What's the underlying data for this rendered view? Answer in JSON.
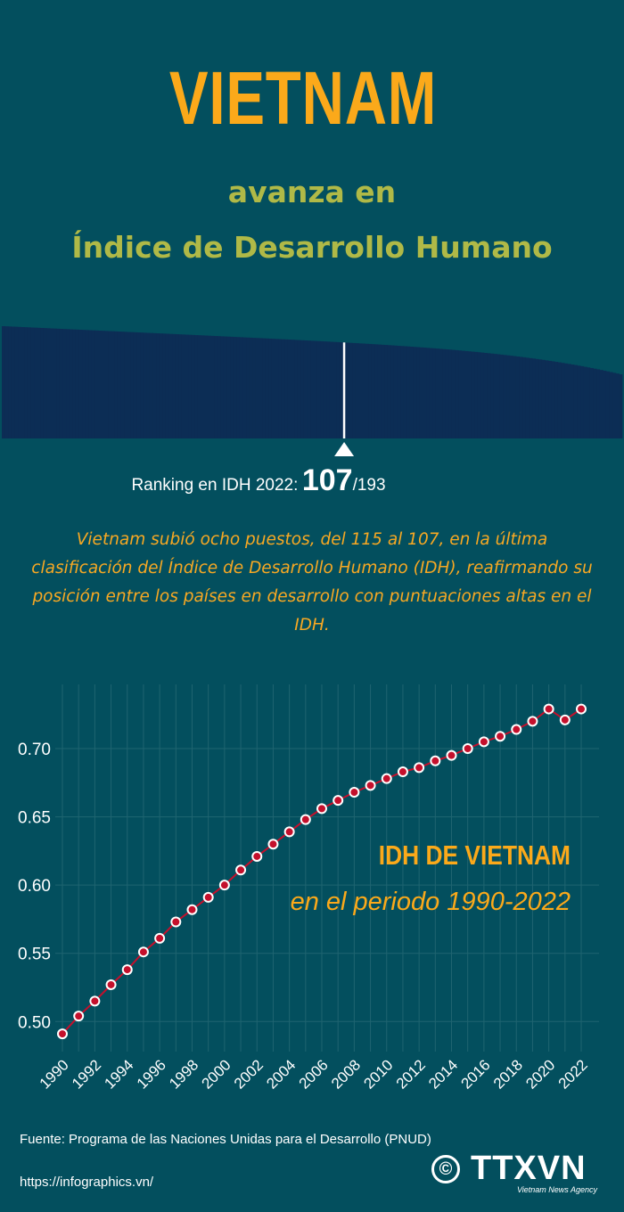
{
  "header": {
    "title": "VIETNAM",
    "subtitle_line1": "avanza en",
    "subtitle_line2": "Índice de Desarrollo Humano"
  },
  "ranking": {
    "label": "Ranking en IDH 2022:",
    "position": "107",
    "total": "/193",
    "rank_value": 107,
    "rank_total": 193,
    "bar_color": "#0c2d55",
    "marker_color": "#ffffff"
  },
  "description": "Vietnam subió ocho puestos, del 115 al 107, en la última clasificación del Índice de Desarrollo Humano (IDH), reafirmando su posición entre los países en desarrollo con puntuaciones altas en el IDH.",
  "chart_title": {
    "line1": "IDH DE VIETNAM",
    "line2": "en el periodo 1990-2022"
  },
  "chart_data": {
    "type": "line",
    "x": [
      "1990",
      "1991",
      "1992",
      "1993",
      "1994",
      "1995",
      "1996",
      "1997",
      "1998",
      "1999",
      "2000",
      "2001",
      "2002",
      "2003",
      "2004",
      "2005",
      "2006",
      "2007",
      "2008",
      "2009",
      "2010",
      "2011",
      "2012",
      "2013",
      "2014",
      "2015",
      "2016",
      "2017",
      "2018",
      "2019",
      "2020",
      "2021",
      "2022"
    ],
    "x_tick_labels": [
      "1990",
      "1992",
      "1994",
      "1996",
      "1998",
      "2000",
      "2002",
      "2004",
      "2006",
      "2008",
      "2010",
      "2012",
      "2014",
      "2016",
      "2018",
      "2020",
      "2022"
    ],
    "values": [
      0.491,
      0.504,
      0.515,
      0.527,
      0.538,
      0.551,
      0.561,
      0.573,
      0.582,
      0.591,
      0.6,
      0.611,
      0.621,
      0.63,
      0.639,
      0.648,
      0.656,
      0.662,
      0.668,
      0.673,
      0.678,
      0.683,
      0.686,
      0.691,
      0.695,
      0.7,
      0.705,
      0.709,
      0.714,
      0.72,
      0.729,
      0.721,
      0.729
    ],
    "y_ticks": [
      "0.50",
      "0.55",
      "0.60",
      "0.65",
      "0.70"
    ],
    "ylim": [
      0.478,
      0.747
    ],
    "grid": true,
    "colors": {
      "line": "#c4102c",
      "marker_fill": "#c4102c",
      "marker_stroke": "#ffffff",
      "grid": "#1f6470"
    }
  },
  "footer": {
    "source": "Fuente: Programa de las Naciones Unidas para el Desarrollo (PNUD)",
    "url": "https://infographics.vn/",
    "copyright_symbol": "©",
    "logo_text": "TTXVN",
    "logo_subtext": "Vietnam News Agency"
  }
}
